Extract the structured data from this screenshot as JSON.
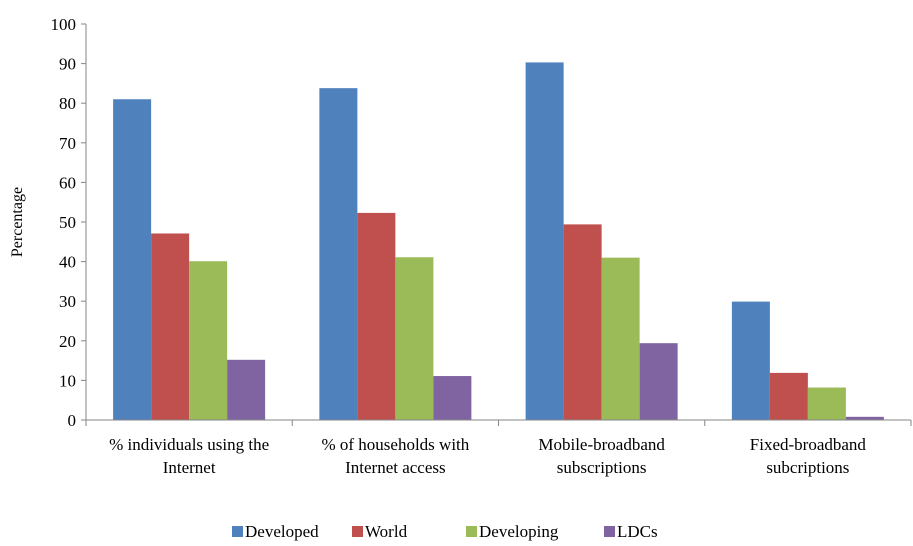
{
  "chart_data": {
    "type": "bar",
    "ylabel": "Percentage",
    "ylim": [
      0,
      100
    ],
    "yticks": [
      0,
      10,
      20,
      30,
      40,
      50,
      60,
      70,
      80,
      90,
      100
    ],
    "grid": false,
    "legend_position": "bottom",
    "categories": [
      [
        "% individuals using the",
        "Internet"
      ],
      [
        "% of households with",
        "Internet access"
      ],
      [
        "Mobile-broadband",
        "subscriptions"
      ],
      [
        "Fixed-broadband",
        "subcriptions"
      ]
    ],
    "series": [
      {
        "name": "Developed",
        "color": "#4f81bd",
        "values": [
          81.0,
          83.8,
          90.3,
          29.9
        ]
      },
      {
        "name": "World",
        "color": "#c0504d",
        "values": [
          47.1,
          52.3,
          49.4,
          11.9
        ]
      },
      {
        "name": "Developing",
        "color": "#9bbb59",
        "values": [
          40.1,
          41.1,
          41.0,
          8.2
        ]
      },
      {
        "name": "LDCs",
        "color": "#8064a2",
        "values": [
          15.2,
          11.1,
          19.4,
          0.8
        ]
      }
    ]
  }
}
